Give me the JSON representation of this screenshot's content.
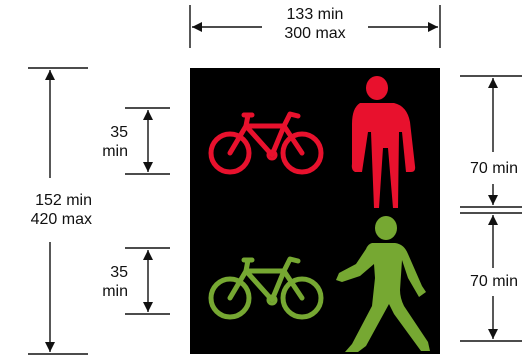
{
  "dimensions": {
    "width_top": {
      "line1": "133 min",
      "line2": "300 max"
    },
    "height_left": {
      "line1": "152 min",
      "line2": "420 max"
    },
    "upper_bicycle_symbol": {
      "line1": "35",
      "line2": "min"
    },
    "lower_bicycle_symbol": {
      "line1": "35",
      "line2": "min"
    },
    "upper_aspect": "70 min",
    "lower_aspect": "70 min"
  },
  "colors": {
    "panel": "#000000",
    "red_aspect": "#e8112d",
    "green_aspect": "#76a832",
    "dimension_lines": "#111111"
  },
  "symbols": {
    "top_left": "cycle-symbol",
    "top_right": "standing-person-symbol",
    "bottom_left": "cycle-symbol",
    "bottom_right": "walking-person-symbol"
  }
}
